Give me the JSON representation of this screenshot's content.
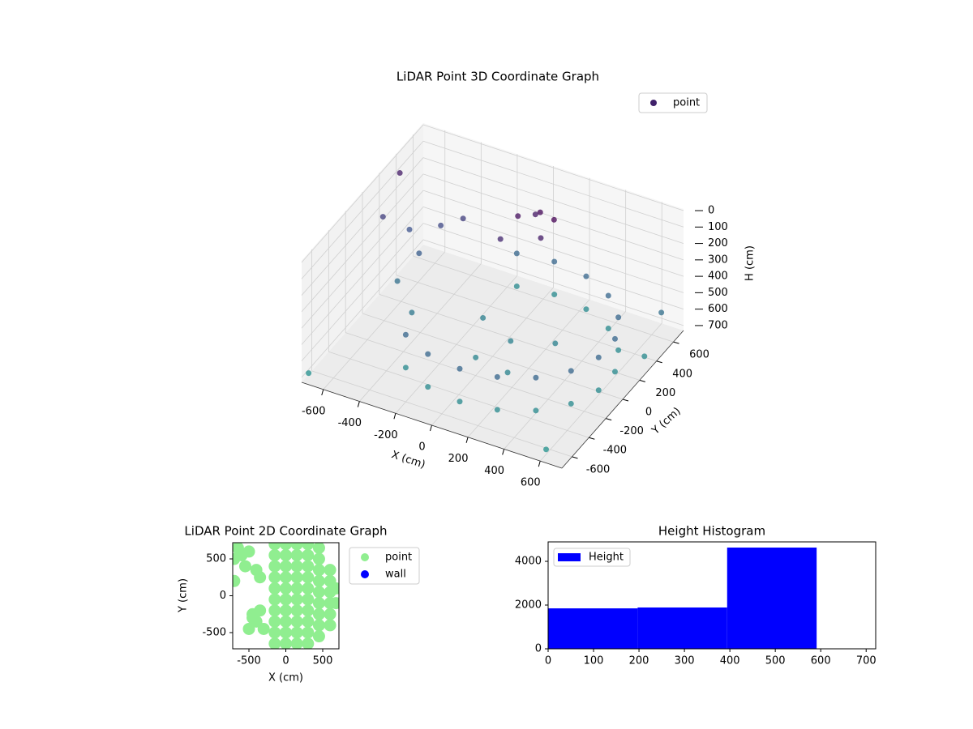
{
  "chart_data": [
    {
      "type": "scatter3d",
      "title": "LiDAR Point 3D Coordinate Graph",
      "xlabel": "X (cm)",
      "ylabel": "Y (cm)",
      "zlabel": "H (cm)",
      "xlim": [
        -720,
        720
      ],
      "ylim": [
        -720,
        720
      ],
      "zlim": [
        730,
        -10
      ],
      "xticks": [
        -600,
        -400,
        -200,
        0,
        200,
        400,
        600
      ],
      "yticks": [
        -600,
        -400,
        -200,
        0,
        200,
        400,
        600
      ],
      "zticks": [
        0,
        100,
        200,
        300,
        400,
        500,
        600,
        700
      ],
      "grid": true,
      "legend": "upper right",
      "series": [
        {
          "name": "point",
          "cmap_colors": [
            "#440154",
            "#3b528b",
            "#21918c"
          ],
          "x": [
            -280,
            -280,
            -112,
            -112,
            80,
            80,
            272,
            272,
            440,
            440,
            565,
            565,
            632,
            632,
            632,
            632,
            565,
            565,
            440,
            440,
            272,
            272,
            80,
            80,
            -112,
            -112,
            0,
            100,
            150,
            -50,
            50,
            200,
            100,
            0,
            300,
            200,
            -100,
            -500,
            -450,
            -550,
            -400,
            -350,
            -600,
            -700,
            -700,
            -700,
            700,
            700,
            600
          ],
          "y": [
            -429,
            -429,
            -526,
            -526,
            -560,
            -560,
            -526,
            -526,
            -429,
            -429,
            -280,
            -280,
            -97,
            -97,
            97,
            97,
            280,
            280,
            429,
            429,
            526,
            526,
            560,
            560,
            526,
            526,
            300,
            350,
            250,
            200,
            400,
            300,
            0,
            -200,
            100,
            -250,
            100,
            200,
            350,
            50,
            -100,
            400,
            300,
            -680,
            400,
            200,
            500,
            300,
            -650
          ],
          "z": [
            450,
            650,
            450,
            650,
            450,
            650,
            450,
            650,
            450,
            650,
            450,
            650,
            450,
            650,
            450,
            650,
            450,
            650,
            450,
            650,
            450,
            650,
            450,
            650,
            450,
            650,
            50,
            20,
            100,
            150,
            80,
            0,
            600,
            620,
            600,
            610,
            590,
            400,
            300,
            500,
            550,
            250,
            350,
            690,
            100,
            250,
            500,
            650,
            700
          ]
        }
      ]
    },
    {
      "type": "scatter",
      "title": "LiDAR Point 2D Coordinate Graph",
      "xlabel": "X (cm)",
      "ylabel": "Y (cm)",
      "xlim": [
        -720,
        720
      ],
      "ylim": [
        -720,
        720
      ],
      "xticks": [
        -500,
        0,
        500
      ],
      "yticks": [
        -500,
        0,
        500
      ],
      "legend": "outside right",
      "series": [
        {
          "name": "point",
          "color": "#90ee90",
          "x": [
            -150,
            -150,
            -150,
            -150,
            -150,
            -150,
            -150,
            -150,
            -150,
            -150,
            0,
            0,
            0,
            0,
            0,
            0,
            0,
            0,
            0,
            0,
            150,
            150,
            150,
            150,
            150,
            150,
            150,
            150,
            150,
            150,
            300,
            300,
            300,
            300,
            300,
            300,
            300,
            300,
            300,
            300,
            450,
            450,
            450,
            450,
            450,
            450,
            450,
            450,
            450,
            600,
            600,
            600,
            600,
            600,
            600,
            680,
            680,
            -650,
            -700,
            -600,
            -500,
            -550,
            -400,
            -350,
            -700,
            -450,
            -400,
            -350,
            -500,
            -300,
            -450
          ],
          "y": [
            -650,
            -500,
            -350,
            -200,
            -50,
            100,
            250,
            400,
            550,
            700,
            -650,
            -500,
            -350,
            -200,
            -50,
            100,
            250,
            400,
            550,
            700,
            -650,
            -500,
            -350,
            -200,
            -50,
            100,
            250,
            400,
            550,
            700,
            -650,
            -500,
            -350,
            -200,
            -50,
            100,
            250,
            400,
            550,
            700,
            -550,
            -400,
            -250,
            -100,
            50,
            200,
            350,
            500,
            650,
            -400,
            -250,
            -100,
            50,
            200,
            350,
            -100,
            100,
            650,
            500,
            550,
            600,
            400,
            350,
            250,
            200,
            -300,
            -350,
            -200,
            -450,
            -450,
            -250
          ]
        },
        {
          "name": "wall",
          "color": "#0000ff",
          "x": [],
          "y": []
        }
      ]
    },
    {
      "type": "histogram",
      "title": "Height Histogram",
      "bins": [
        0,
        197,
        394,
        591
      ],
      "xlim": [
        0,
        721
      ],
      "ylim": [
        0,
        4890
      ],
      "xticks": [
        0,
        100,
        200,
        300,
        400,
        500,
        600,
        700
      ],
      "yticks": [
        0,
        2000,
        4000
      ],
      "legend": "upper left",
      "series": [
        {
          "name": "Height",
          "color": "#0000ff",
          "values": [
            1850,
            1890,
            4630
          ]
        }
      ]
    }
  ]
}
